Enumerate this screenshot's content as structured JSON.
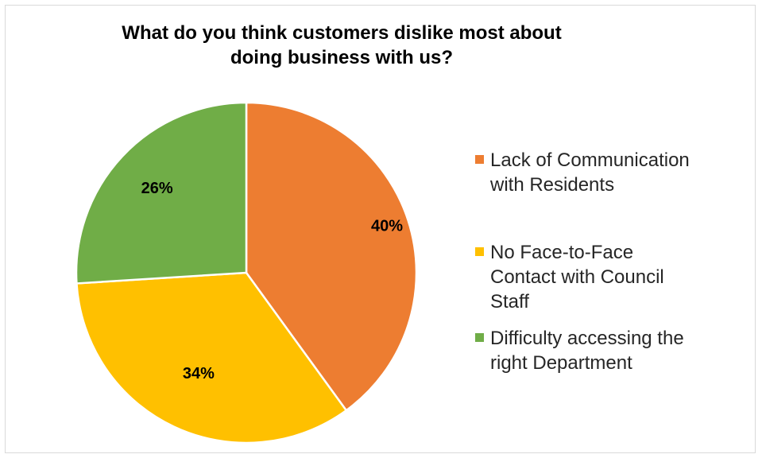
{
  "chart_data": {
    "type": "pie",
    "title": "What do you think customers dislike most about doing business with us?",
    "title_lines": [
      "What do you think customers dislike most about",
      "doing business with us?"
    ],
    "slices": [
      {
        "name": "Lack of Communication with Residents",
        "legend_lines": [
          "Lack of Communication",
          "with Residents"
        ],
        "value": 40,
        "label": "40%",
        "color": "#ed7d31"
      },
      {
        "name": "No Face-to-Face Contact with Council Staff",
        "legend_lines": [
          "No Face-to-Face",
          "Contact with Council",
          "Staff"
        ],
        "value": 34,
        "label": "34%",
        "color": "#ffc000"
      },
      {
        "name": "Difficulty accessing the right Department",
        "legend_lines": [
          "Difficulty accessing the",
          "right Department"
        ],
        "value": 26,
        "label": "26%",
        "color": "#70ad47"
      }
    ],
    "legend_position": "right",
    "data_labels": true
  }
}
